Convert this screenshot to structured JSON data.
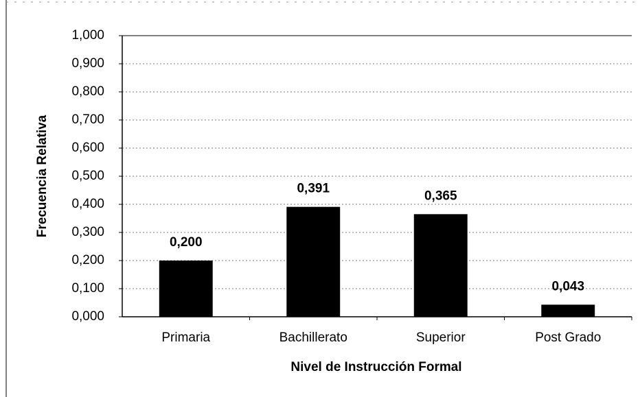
{
  "chart_data": {
    "type": "bar",
    "categories": [
      "Primaria",
      "Bachillerato",
      "Superior",
      "Post Grado"
    ],
    "values": [
      0.2,
      0.391,
      0.365,
      0.043
    ],
    "value_labels": [
      "0,200",
      "0,391",
      "0,365",
      "0,043"
    ],
    "color": "#000000",
    "x_label": "Nivel de Instrucción Formal",
    "y_label": "Frecuencia Relativa",
    "ylim": [
      0,
      1
    ],
    "yticks": [
      {
        "value": 0,
        "label": "0,000"
      },
      {
        "value": 0.1,
        "label": "0,100"
      },
      {
        "value": 0.2,
        "label": "0,200"
      },
      {
        "value": 0.3,
        "label": "0,300"
      },
      {
        "value": 0.4,
        "label": "0,400"
      },
      {
        "value": 0.5,
        "label": "0,500"
      },
      {
        "value": 0.6,
        "label": "0,600"
      },
      {
        "value": 0.7,
        "label": "0,700"
      },
      {
        "value": 0.8,
        "label": "0,800"
      },
      {
        "value": 0.9,
        "label": "0,900"
      },
      {
        "value": 1,
        "label": "1,000"
      }
    ],
    "grid": true
  }
}
